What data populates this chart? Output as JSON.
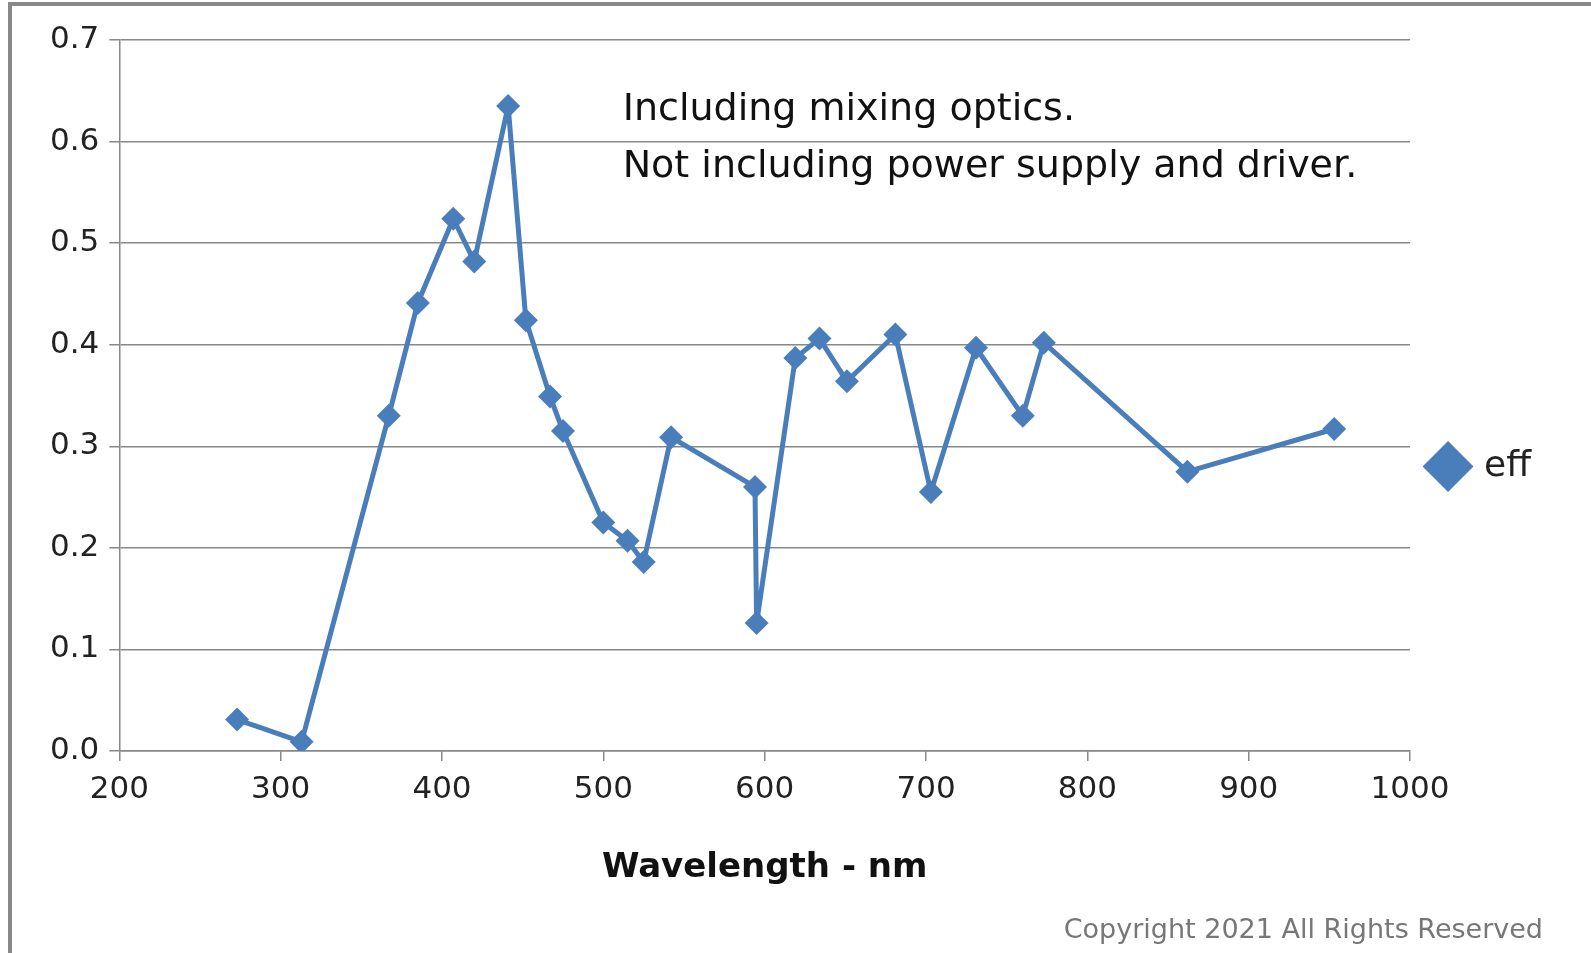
{
  "chart_data": {
    "type": "line",
    "xlabel": "Wavelength - nm",
    "annotations": [
      "Including mixing optics.",
      "Not including power supply and driver.",
      "Copyright 2021 All Rights Reserved"
    ],
    "xlim": [
      200,
      1000
    ],
    "xticks": [
      200,
      300,
      400,
      500,
      600,
      700,
      800,
      900,
      1000
    ],
    "ylim": [
      0,
      0.7
    ],
    "yticks": [
      {
        "value": 0,
        "label": "0.0"
      },
      0.1,
      0.2,
      0.3,
      0.4,
      0.5,
      0.6,
      0.7
    ],
    "grid": "y",
    "legend": "right",
    "marker": "diamond",
    "line_style": "solid",
    "series": [
      {
        "name": "eff",
        "color": "#4a7ebb",
        "x": [
          273,
          313,
          367,
          385,
          407,
          420,
          441,
          452,
          467,
          475,
          500,
          515,
          525,
          542,
          594,
          595,
          619,
          634,
          651,
          681,
          703,
          731,
          760,
          773,
          862,
          953
        ],
        "values": [
          0.031,
          0.009,
          0.33,
          0.441,
          0.524,
          0.482,
          0.635,
          0.424,
          0.349,
          0.315,
          0.225,
          0.207,
          0.186,
          0.309,
          0.26,
          0.126,
          0.387,
          0.406,
          0.364,
          0.41,
          0.255,
          0.397,
          0.33,
          0.402,
          0.275,
          0.317
        ]
      }
    ]
  }
}
